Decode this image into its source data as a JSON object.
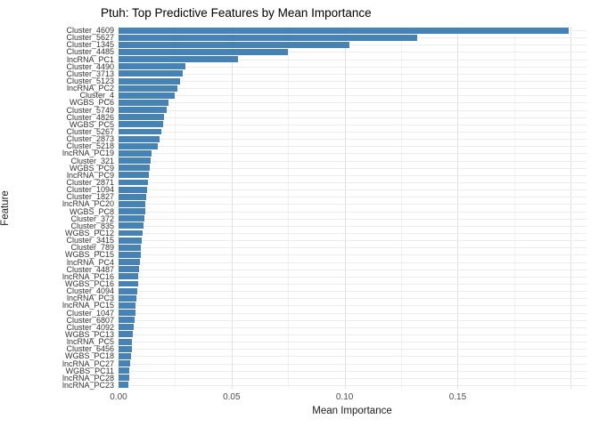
{
  "title": "Ptuh: Top Predictive Features by Mean Importance",
  "colors": {
    "bar": "#4682B4",
    "grid_major": "#e0e0e0",
    "grid_minor": "#f1f1f1",
    "grid_horizontal": "#ebebeb",
    "axis_text": "#4d4d4d",
    "feature_text": "#333333"
  },
  "chart_data": {
    "type": "bar",
    "orientation": "horizontal",
    "title": "Ptuh: Top Predictive Features by Mean Importance",
    "xlabel": "Mean Importance",
    "ylabel": "Feature",
    "xlim": [
      0,
      0.207
    ],
    "grid": true,
    "legend": "none",
    "bar_color": "#4682B4",
    "xticks": [
      0,
      0.05,
      0.1,
      0.15
    ],
    "xtick_labels": [
      "0.00",
      "0.05",
      "0.10",
      "0.15"
    ],
    "major_gridlines": [
      0,
      0.05,
      0.1,
      0.15,
      0.2
    ],
    "minor_gridlines": [
      0.025,
      0.075,
      0.125,
      0.175
    ],
    "categories": [
      "Cluster_4609",
      "Cluster_5627",
      "Cluster_1345",
      "Cluster_4485",
      "lncRNA_PC1",
      "Cluster_4490",
      "Cluster_3713",
      "Cluster_5123",
      "lncRNA_PC2",
      "Cluster_4",
      "WGBS_PC6",
      "Cluster_5749",
      "Cluster_4826",
      "WGBS_PC5",
      "Cluster_5267",
      "Cluster_2873",
      "Cluster_5218",
      "lncRNA_PC19",
      "Cluster_321",
      "WGBS_PC9",
      "lncRNA_PC9",
      "Cluster_2871",
      "Cluster_1094",
      "Cluster_1827",
      "lncRNA_PC20",
      "WGBS_PC8",
      "Cluster_372",
      "Cluster_835",
      "WGBS_PC12",
      "Cluster_3415",
      "Cluster_789",
      "WGBS_PC15",
      "lncRNA_PC4",
      "Cluster_4487",
      "lncRNA_PC16",
      "WGBS_PC16",
      "Cluster_4094",
      "lncRNA_PC3",
      "lncRNA_PC15",
      "Cluster_1047",
      "Cluster_6807",
      "Cluster_4092",
      "WGBS_PC13",
      "lncRNA_PC5",
      "Cluster_6456",
      "WGBS_PC18",
      "lncRNA_PC27",
      "WGBS_PC11",
      "lncRNA_PC28",
      "lncRNA_PC23"
    ],
    "values": [
      0.199,
      0.132,
      0.102,
      0.075,
      0.053,
      0.0295,
      0.0283,
      0.0272,
      0.026,
      0.0248,
      0.022,
      0.0213,
      0.0203,
      0.0198,
      0.0188,
      0.018,
      0.0175,
      0.0146,
      0.0141,
      0.0138,
      0.0135,
      0.0131,
      0.0127,
      0.0123,
      0.012,
      0.0117,
      0.0113,
      0.011,
      0.0107,
      0.0104,
      0.01,
      0.0097,
      0.0094,
      0.0091,
      0.0088,
      0.0085,
      0.0082,
      0.0079,
      0.0076,
      0.0073,
      0.007,
      0.0067,
      0.0064,
      0.0061,
      0.0058,
      0.0055,
      0.0052,
      0.0049,
      0.0046,
      0.0043
    ]
  }
}
